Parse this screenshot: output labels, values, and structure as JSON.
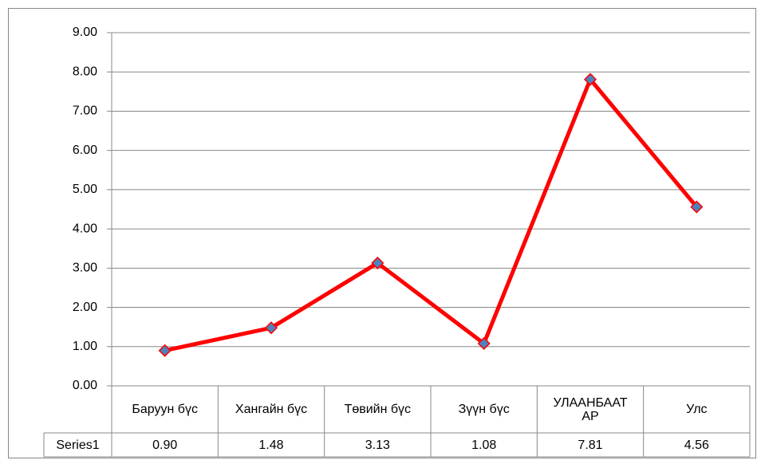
{
  "chart_data": {
    "type": "line",
    "categories": [
      "Баруун бүс",
      "Хангайн бүс",
      "Төвийн бүс",
      "Зүүн бүс",
      "УЛААНБААТАР",
      "Улс"
    ],
    "series": [
      {
        "name": "Series1",
        "color": "#ff0000",
        "marker_color": "#4f81bd",
        "values": [
          0.9,
          1.48,
          3.13,
          1.08,
          7.81,
          4.56
        ],
        "value_labels": [
          "0.90",
          "1.48",
          "3.13",
          "1.08",
          "7.81",
          "4.56"
        ]
      }
    ],
    "ylim": [
      0,
      9
    ],
    "yticks": [
      {
        "value": 0,
        "label": "0.00"
      },
      {
        "value": 1,
        "label": "1.00"
      },
      {
        "value": 2,
        "label": "2.00"
      },
      {
        "value": 3,
        "label": "3.00"
      },
      {
        "value": 4,
        "label": "4.00"
      },
      {
        "value": 5,
        "label": "5.00"
      },
      {
        "value": 6,
        "label": "6.00"
      },
      {
        "value": 7,
        "label": "7.00"
      },
      {
        "value": 8,
        "label": "8.00"
      },
      {
        "value": 9,
        "label": "9.00"
      }
    ],
    "grid": true,
    "data_table": true
  }
}
